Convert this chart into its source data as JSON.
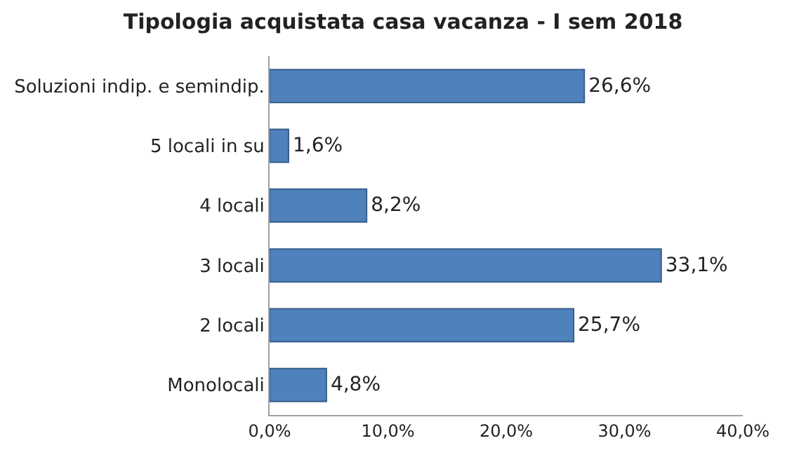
{
  "chart_data": {
    "type": "bar",
    "orientation": "horizontal",
    "title": "Tipologia acquistata casa vacanza - I sem 2018",
    "categories": [
      "Soluzioni indip. e semindip.",
      "5 locali in su",
      "4 locali",
      "3 locali",
      "2 locali",
      "Monolocali"
    ],
    "values": [
      26.6,
      1.6,
      8.2,
      33.1,
      25.7,
      4.8
    ],
    "value_labels": [
      "26,6%",
      "1,6%",
      "8,2%",
      "33,1%",
      "25,7%",
      "4,8%"
    ],
    "color": "#4f81bd",
    "xlim": [
      0,
      40
    ],
    "xticks": [
      {
        "value": 0,
        "label": "0,0%"
      },
      {
        "value": 10,
        "label": "10,0%"
      },
      {
        "value": 20,
        "label": "20,0%"
      },
      {
        "value": 30,
        "label": "30,0%"
      },
      {
        "value": 40,
        "label": "40,0%"
      }
    ],
    "tick_labels": "xy"
  }
}
